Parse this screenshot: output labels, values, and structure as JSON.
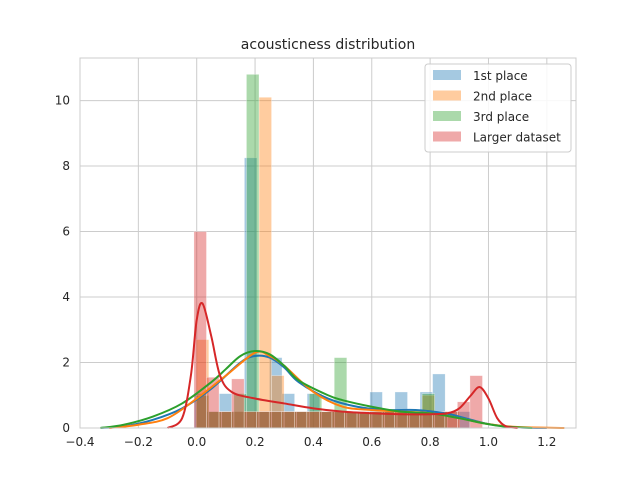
{
  "chart_data": {
    "type": "histogram",
    "title": "acousticness distribution",
    "xlabel": "",
    "ylabel": "",
    "xlim": [
      -0.4,
      1.3
    ],
    "ylim": [
      0,
      11.3
    ],
    "xticks": [
      -0.4,
      -0.2,
      0.0,
      0.2,
      0.4,
      0.6,
      0.8,
      1.0,
      1.2
    ],
    "xtick_labels": [
      "−0.4",
      "−0.2",
      "0.0",
      "0.2",
      "0.4",
      "0.6",
      "0.8",
      "1.0",
      "1.2"
    ],
    "yticks": [
      0,
      2,
      4,
      6,
      8,
      10
    ],
    "ytick_labels": [
      "0",
      "2",
      "4",
      "6",
      "8",
      "10"
    ],
    "grid": true,
    "legend_position": "top-right",
    "bin_width": 0.043,
    "series": [
      {
        "name": "1st place",
        "color": "#1f77b4",
        "bars": [
          [
            0.013,
            1.05
          ],
          [
            0.056,
            0.5
          ],
          [
            0.099,
            1.05
          ],
          [
            0.142,
            0.5
          ],
          [
            0.185,
            8.25
          ],
          [
            0.228,
            0.5
          ],
          [
            0.271,
            2.15
          ],
          [
            0.314,
            1.05
          ],
          [
            0.357,
            0.5
          ],
          [
            0.4,
            1.05
          ],
          [
            0.443,
            0.5
          ],
          [
            0.486,
            0.5
          ],
          [
            0.529,
            0.5
          ],
          [
            0.572,
            0.5
          ],
          [
            0.615,
            1.1
          ],
          [
            0.658,
            0.5
          ],
          [
            0.701,
            1.1
          ],
          [
            0.744,
            0.5
          ],
          [
            0.787,
            1.1
          ],
          [
            0.83,
            1.65
          ],
          [
            0.873,
            0.5
          ],
          [
            0.916,
            0.5
          ]
        ],
        "kde": [
          [
            -0.33,
            0.0
          ],
          [
            -0.25,
            0.05
          ],
          [
            -0.15,
            0.25
          ],
          [
            -0.05,
            0.6
          ],
          [
            0.05,
            1.2
          ],
          [
            0.15,
            2.0
          ],
          [
            0.2,
            2.2
          ],
          [
            0.25,
            2.15
          ],
          [
            0.3,
            1.85
          ],
          [
            0.35,
            1.4
          ],
          [
            0.45,
            0.9
          ],
          [
            0.55,
            0.65
          ],
          [
            0.65,
            0.55
          ],
          [
            0.75,
            0.55
          ],
          [
            0.85,
            0.45
          ],
          [
            0.92,
            0.3
          ],
          [
            1.0,
            0.12
          ],
          [
            1.1,
            0.02
          ],
          [
            1.2,
            0.0
          ]
        ]
      },
      {
        "name": "2nd place",
        "color": "#ff7f0e",
        "bars": [
          [
            0.02,
            2.7
          ],
          [
            0.063,
            0.5
          ],
          [
            0.106,
            0.5
          ],
          [
            0.149,
            0.5
          ],
          [
            0.192,
            0.5
          ],
          [
            0.235,
            10.1
          ],
          [
            0.278,
            1.6
          ],
          [
            0.321,
            0.5
          ],
          [
            0.364,
            0.5
          ],
          [
            0.407,
            0.5
          ],
          [
            0.45,
            0.5
          ],
          [
            0.493,
            0.5
          ],
          [
            0.536,
            0.5
          ],
          [
            0.579,
            0.5
          ],
          [
            0.622,
            0.5
          ],
          [
            0.665,
            0.5
          ],
          [
            0.708,
            0.5
          ],
          [
            0.751,
            0.5
          ],
          [
            0.794,
            1.0
          ],
          [
            0.837,
            0.5
          ],
          [
            0.88,
            0.5
          ]
        ],
        "kde": [
          [
            -0.3,
            0.0
          ],
          [
            -0.2,
            0.1
          ],
          [
            -0.1,
            0.3
          ],
          [
            0.0,
            0.9
          ],
          [
            0.1,
            1.6
          ],
          [
            0.2,
            2.3
          ],
          [
            0.25,
            2.2
          ],
          [
            0.3,
            1.9
          ],
          [
            0.4,
            1.1
          ],
          [
            0.5,
            0.65
          ],
          [
            0.6,
            0.55
          ],
          [
            0.7,
            0.5
          ],
          [
            0.8,
            0.45
          ],
          [
            0.9,
            0.3
          ],
          [
            1.0,
            0.12
          ],
          [
            1.1,
            0.03
          ],
          [
            1.26,
            0.0
          ]
        ]
      },
      {
        "name": "3rd place",
        "color": "#2ca02c",
        "bars": [
          [
            0.02,
            1.0
          ],
          [
            0.063,
            0.5
          ],
          [
            0.106,
            0.5
          ],
          [
            0.149,
            1.05
          ],
          [
            0.192,
            10.8
          ],
          [
            0.235,
            0.5
          ],
          [
            0.278,
            0.5
          ],
          [
            0.321,
            0.5
          ],
          [
            0.364,
            0.5
          ],
          [
            0.407,
            1.05
          ],
          [
            0.45,
            0.5
          ],
          [
            0.493,
            2.15
          ],
          [
            0.536,
            0.5
          ],
          [
            0.579,
            0.5
          ],
          [
            0.622,
            0.5
          ],
          [
            0.665,
            0.5
          ],
          [
            0.708,
            0.5
          ],
          [
            0.751,
            0.5
          ],
          [
            0.794,
            1.05
          ],
          [
            0.837,
            0.5
          ]
        ],
        "kde": [
          [
            -0.33,
            0.0
          ],
          [
            -0.25,
            0.1
          ],
          [
            -0.15,
            0.35
          ],
          [
            -0.05,
            0.75
          ],
          [
            0.05,
            1.4
          ],
          [
            0.1,
            1.8
          ],
          [
            0.15,
            2.2
          ],
          [
            0.2,
            2.35
          ],
          [
            0.25,
            2.25
          ],
          [
            0.3,
            1.9
          ],
          [
            0.35,
            1.45
          ],
          [
            0.45,
            1.0
          ],
          [
            0.5,
            0.85
          ],
          [
            0.6,
            0.65
          ],
          [
            0.7,
            0.5
          ],
          [
            0.8,
            0.45
          ],
          [
            0.9,
            0.3
          ],
          [
            0.98,
            0.15
          ],
          [
            1.05,
            0.05
          ],
          [
            1.15,
            0.0
          ]
        ]
      },
      {
        "name": "Larger dataset",
        "color": "#d62728",
        "bars": [
          [
            0.012,
            6.0
          ],
          [
            0.055,
            1.55
          ],
          [
            0.098,
            0.5
          ],
          [
            0.141,
            1.5
          ],
          [
            0.184,
            0.5
          ],
          [
            0.227,
            0.5
          ],
          [
            0.27,
            0.5
          ],
          [
            0.313,
            0.5
          ],
          [
            0.356,
            0.5
          ],
          [
            0.399,
            0.5
          ],
          [
            0.442,
            0.5
          ],
          [
            0.485,
            0.5
          ],
          [
            0.528,
            0.5
          ],
          [
            0.571,
            0.5
          ],
          [
            0.614,
            0.5
          ],
          [
            0.657,
            0.5
          ],
          [
            0.7,
            0.5
          ],
          [
            0.743,
            0.5
          ],
          [
            0.786,
            0.5
          ],
          [
            0.829,
            0.5
          ],
          [
            0.872,
            0.5
          ],
          [
            0.915,
            0.8
          ],
          [
            0.958,
            1.6
          ]
        ],
        "kde": [
          [
            -0.1,
            0.0
          ],
          [
            -0.05,
            0.3
          ],
          [
            -0.02,
            1.6
          ],
          [
            0.0,
            3.3
          ],
          [
            0.02,
            3.8
          ],
          [
            0.05,
            2.8
          ],
          [
            0.08,
            1.6
          ],
          [
            0.12,
            1.1
          ],
          [
            0.2,
            0.9
          ],
          [
            0.3,
            0.75
          ],
          [
            0.4,
            0.6
          ],
          [
            0.5,
            0.5
          ],
          [
            0.6,
            0.45
          ],
          [
            0.7,
            0.42
          ],
          [
            0.8,
            0.42
          ],
          [
            0.86,
            0.45
          ],
          [
            0.9,
            0.6
          ],
          [
            0.94,
            1.0
          ],
          [
            0.97,
            1.25
          ],
          [
            1.0,
            0.9
          ],
          [
            1.03,
            0.3
          ],
          [
            1.06,
            0.05
          ],
          [
            1.1,
            0.0
          ]
        ]
      }
    ]
  },
  "legend": {
    "entries": [
      {
        "label": "1st place",
        "color": "#1f77b4"
      },
      {
        "label": "2nd place",
        "color": "#ff7f0e"
      },
      {
        "label": "3rd place",
        "color": "#2ca02c"
      },
      {
        "label": "Larger dataset",
        "color": "#d62728"
      }
    ]
  }
}
